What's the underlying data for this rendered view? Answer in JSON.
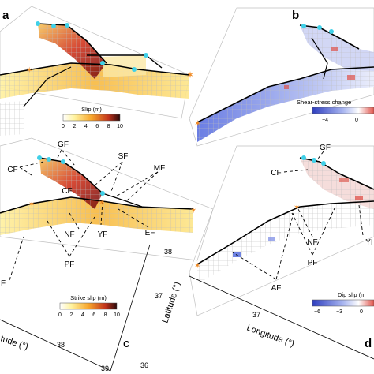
{
  "panels": {
    "a": {
      "label": "a"
    },
    "b": {
      "label": "b"
    },
    "c": {
      "label": "c"
    },
    "d": {
      "label": "d"
    }
  },
  "colorbars": {
    "slip": {
      "title": "Slip (m)",
      "ticks": [
        "0",
        "2",
        "4",
        "6",
        "8",
        "10"
      ]
    },
    "shear": {
      "title": "Shear-stress change",
      "ticks": [
        "−4",
        "0"
      ]
    },
    "strike": {
      "title": "Strike slip (m)",
      "ticks": [
        "0",
        "2",
        "4",
        "6",
        "8",
        "10"
      ]
    },
    "dip": {
      "title": "Dip slip (m",
      "ticks": [
        "−6",
        "−3",
        "0"
      ]
    }
  },
  "fault_labels_c": [
    "GF",
    "SF",
    "MF",
    "CF",
    "CF",
    "NF",
    "YF",
    "EF",
    "PF",
    "F"
  ],
  "fault_labels_d": [
    "GF",
    "CF",
    "NF",
    "YI",
    "PF",
    "AF"
  ],
  "axes": {
    "latitude_label": "Latitude (°)",
    "latitude_ticks": [
      "38",
      "37",
      "36"
    ],
    "longitude_label": "Longitude (°)",
    "longitude_ticks": [
      "37",
      "38",
      "39"
    ],
    "left_axis_fragment": "tude (°)",
    "left_axis_ticks": [
      "38",
      "39"
    ]
  },
  "colors": {
    "slip_low": "#fff7b0",
    "slip_mid": "#f6a12c",
    "slip_high": "#a3171b",
    "stress_neg": "#3f5ad9",
    "stress_pos": "#e0524a",
    "fault_line": "#000000",
    "epicenter": "#3fd0e8",
    "star": "#f08a24",
    "grid": "#c8c8c8"
  }
}
